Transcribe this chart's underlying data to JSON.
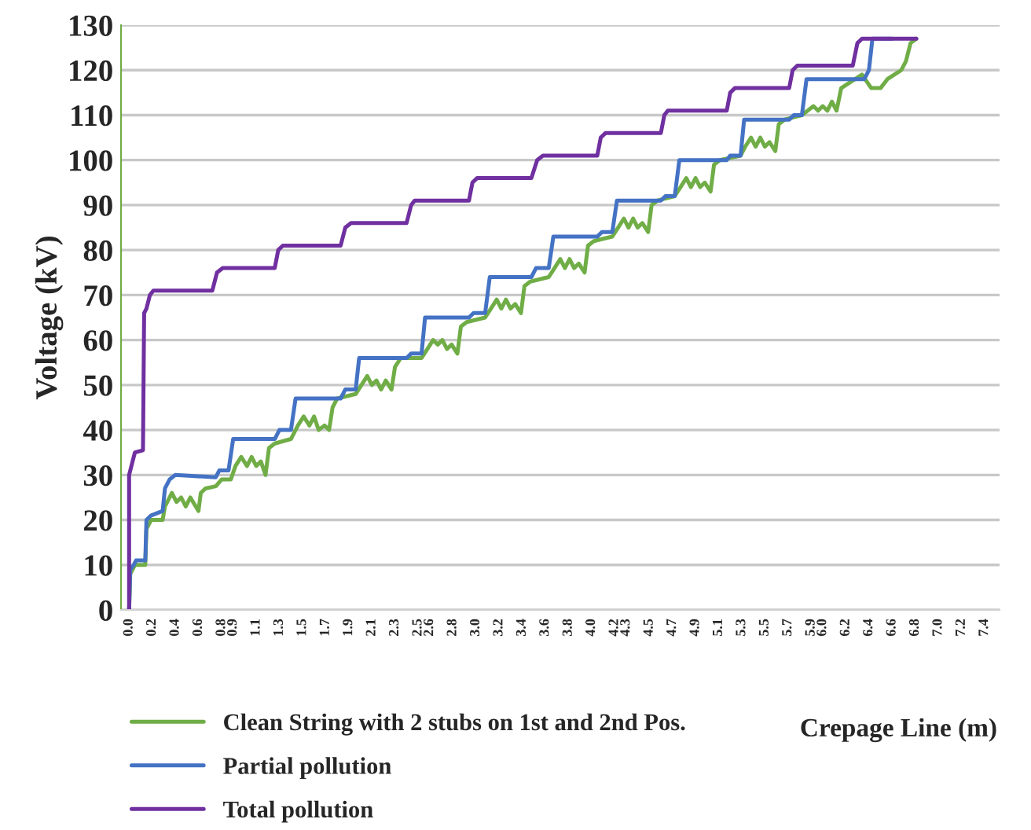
{
  "chart_data": {
    "type": "line",
    "xlabel": "Crepage Line (m)",
    "ylabel": "Voltage (kV)",
    "xlim": [
      -0.07,
      7.53
    ],
    "ylim": [
      0,
      130
    ],
    "xticks": [
      {
        "value": 0,
        "label": "0.0"
      },
      {
        "value": 0.2,
        "label": "0.2"
      },
      {
        "value": 0.4,
        "label": "0.4"
      },
      {
        "value": 0.6,
        "label": "0.6"
      },
      {
        "value": 0.8,
        "label": "0.8"
      },
      {
        "value": 0.9,
        "label": "0.9"
      },
      {
        "value": 1.1,
        "label": "1.1"
      },
      {
        "value": 1.3,
        "label": "1.3"
      },
      {
        "value": 1.5,
        "label": "1.5"
      },
      {
        "value": 1.7,
        "label": "1.7"
      },
      {
        "value": 1.9,
        "label": "1.9"
      },
      {
        "value": 2.1,
        "label": "2.1"
      },
      {
        "value": 2.3,
        "label": "2.3"
      },
      {
        "value": 2.5,
        "label": "2.5"
      },
      {
        "value": 2.6,
        "label": "2.6"
      },
      {
        "value": 2.8,
        "label": "2.8"
      },
      {
        "value": 3.0,
        "label": "3.0"
      },
      {
        "value": 3.2,
        "label": "3.2"
      },
      {
        "value": 3.4,
        "label": "3.4"
      },
      {
        "value": 3.6,
        "label": "3.6"
      },
      {
        "value": 3.8,
        "label": "3.8"
      },
      {
        "value": 4.0,
        "label": "4.0"
      },
      {
        "value": 4.2,
        "label": "4.2"
      },
      {
        "value": 4.3,
        "label": "4.3"
      },
      {
        "value": 4.5,
        "label": "4.5"
      },
      {
        "value": 4.7,
        "label": "4.7"
      },
      {
        "value": 4.9,
        "label": "4.9"
      },
      {
        "value": 5.1,
        "label": "5.1"
      },
      {
        "value": 5.3,
        "label": "5.3"
      },
      {
        "value": 5.5,
        "label": "5.5"
      },
      {
        "value": 5.7,
        "label": "5.7"
      },
      {
        "value": 5.9,
        "label": "5.9"
      },
      {
        "value": 6.0,
        "label": "6.0"
      },
      {
        "value": 6.2,
        "label": "6.2"
      },
      {
        "value": 6.4,
        "label": "6.4"
      },
      {
        "value": 6.6,
        "label": "6.6"
      },
      {
        "value": 6.8,
        "label": "6.8"
      },
      {
        "value": 7.0,
        "label": "7.0"
      },
      {
        "value": 7.2,
        "label": "7.2"
      },
      {
        "value": 7.4,
        "label": "7.4"
      }
    ],
    "yticks": [
      0,
      10,
      20,
      30,
      40,
      50,
      60,
      70,
      80,
      90,
      100,
      110,
      120,
      130
    ],
    "grid": "y",
    "legend": "bottom",
    "line_style": "solid",
    "series": [
      {
        "name": "Clean String with 2 stubs on 1st and 2nd Pos.",
        "color": "#70ad47",
        "x": [
          0,
          0.01,
          0.05,
          0.14,
          0.15,
          0.19,
          0.29,
          0.31,
          0.37,
          0.41,
          0.45,
          0.49,
          0.53,
          0.6,
          0.62,
          0.66,
          0.75,
          0.8,
          0.88,
          0.92,
          0.97,
          1.02,
          1.06,
          1.1,
          1.14,
          1.18,
          1.21,
          1.26,
          1.4,
          1.46,
          1.51,
          1.56,
          1.6,
          1.64,
          1.69,
          1.73,
          1.76,
          1.8,
          1.96,
          2.01,
          2.06,
          2.1,
          2.14,
          2.18,
          2.22,
          2.27,
          2.3,
          2.35,
          2.53,
          2.58,
          2.63,
          2.67,
          2.71,
          2.75,
          2.79,
          2.84,
          2.87,
          2.92,
          3.08,
          3.13,
          3.18,
          3.22,
          3.26,
          3.3,
          3.34,
          3.39,
          3.42,
          3.47,
          3.63,
          3.68,
          3.73,
          3.77,
          3.81,
          3.85,
          3.89,
          3.94,
          3.97,
          4.02,
          4.18,
          4.23,
          4.28,
          4.32,
          4.36,
          4.4,
          4.44,
          4.49,
          4.52,
          4.57,
          4.72,
          4.77,
          4.82,
          4.86,
          4.9,
          4.94,
          4.98,
          5.03,
          5.06,
          5.11,
          5.29,
          5.33,
          5.38,
          5.42,
          5.46,
          5.5,
          5.54,
          5.59,
          5.62,
          5.67,
          5.82,
          5.87,
          5.92,
          5.96,
          6.0,
          6.04,
          6.08,
          6.12,
          6.16,
          6.22,
          6.28,
          6.34,
          6.42,
          6.5,
          6.56,
          6.62,
          6.68,
          6.72,
          6.76,
          6.81
        ],
        "values": [
          0,
          8,
          10,
          10,
          18,
          20,
          20,
          23,
          26,
          24,
          25,
          23,
          25,
          22,
          26,
          27,
          27.5,
          29,
          29,
          32,
          34,
          32,
          34,
          32,
          33,
          30,
          36,
          37,
          38,
          41,
          43,
          41,
          43,
          40,
          41,
          40,
          45,
          47,
          48,
          50,
          52,
          50,
          51,
          49,
          51,
          49,
          54,
          56,
          56,
          58,
          60,
          59,
          60,
          58,
          59,
          57,
          63,
          64,
          65,
          67,
          69,
          67,
          69,
          67,
          68,
          66,
          72,
          73,
          74,
          76,
          78,
          76,
          78,
          76,
          77,
          75,
          81,
          82,
          83,
          85,
          87,
          85,
          87,
          85,
          86,
          84,
          90,
          91,
          92,
          94,
          96,
          94,
          96,
          94,
          95,
          93,
          99,
          100,
          101,
          103,
          105,
          103,
          105,
          103,
          104,
          102,
          108,
          109,
          110,
          111,
          112,
          111,
          112,
          111,
          113,
          111,
          116,
          117,
          118,
          119,
          116,
          116,
          118,
          119,
          120,
          122,
          126,
          127
        ]
      },
      {
        "name": "Partial pollution",
        "color": "#4472c4",
        "x": [
          0,
          0.01,
          0.04,
          0.06,
          0.14,
          0.15,
          0.19,
          0.29,
          0.31,
          0.35,
          0.4,
          0.75,
          0.78,
          0.86,
          0.9,
          1.26,
          1.3,
          1.4,
          1.44,
          1.83,
          1.87,
          1.96,
          1.99,
          2.4,
          2.44,
          2.53,
          2.56,
          2.94,
          2.98,
          3.08,
          3.12,
          3.48,
          3.52,
          3.63,
          3.67,
          4.05,
          4.09,
          4.18,
          4.22,
          4.6,
          4.64,
          4.72,
          4.76,
          5.17,
          5.2,
          5.29,
          5.32,
          5.71,
          5.75,
          5.82,
          5.86,
          6.36,
          6.4,
          6.43,
          6.6
        ],
        "values": [
          0,
          9,
          10,
          11,
          11,
          20,
          21,
          22,
          27,
          29,
          30,
          29.5,
          31,
          31,
          38,
          38,
          40,
          40,
          47,
          47,
          49,
          49,
          56,
          56,
          57,
          57,
          65,
          65,
          66,
          66,
          74,
          74,
          76,
          76,
          83,
          83,
          84,
          84,
          91,
          91,
          92,
          92,
          100,
          100,
          101,
          101,
          109,
          109,
          110,
          110,
          118,
          118,
          120,
          127,
          127
        ]
      },
      {
        "name": "Total pollution",
        "color": "#7030a0",
        "x": [
          0,
          0,
          0.03,
          0.05,
          0.12,
          0.13,
          0.15,
          0.18,
          0.21,
          0.72,
          0.76,
          0.81,
          1.26,
          1.29,
          1.33,
          1.83,
          1.87,
          1.92,
          2.4,
          2.44,
          2.47,
          2.94,
          2.97,
          3.01,
          3.48,
          3.53,
          3.58,
          4.05,
          4.08,
          4.12,
          4.6,
          4.63,
          4.66,
          5.17,
          5.2,
          5.24,
          5.71,
          5.74,
          5.78,
          6.26,
          6.3,
          6.34,
          6.81
        ],
        "values": [
          0,
          30,
          33,
          35,
          35.5,
          66,
          67,
          70,
          71,
          71,
          75,
          76,
          76,
          80,
          81,
          81,
          85,
          86,
          86,
          90,
          91,
          91,
          95,
          96,
          96,
          100,
          101,
          101,
          105,
          106,
          106,
          110,
          111,
          111,
          115,
          116,
          116,
          120,
          121,
          121,
          126,
          127,
          127
        ]
      }
    ]
  }
}
